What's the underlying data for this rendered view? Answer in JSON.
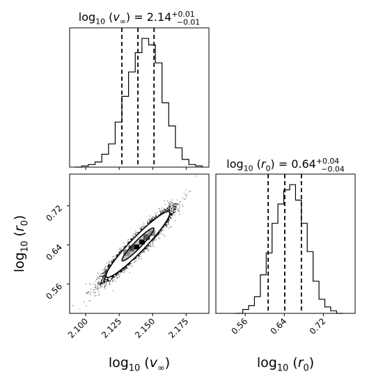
{
  "chart_data": [
    {
      "type": "histogram",
      "panel": "marginal",
      "parameter": "log10(v_inf)",
      "title_html": {
        "base": "log",
        "sub": "10",
        "arg": "(v",
        "argsub": "∞",
        "tail": ") = 2.14",
        "sup": "+0.01",
        "subv": "−0.01"
      },
      "title": "log10(v∞) = 2.14 +0.01 −0.01",
      "xlim": [
        2.088,
        2.192
      ],
      "bins": [
        2.092,
        2.097,
        2.102,
        2.107,
        2.112,
        2.117,
        2.122,
        2.127,
        2.132,
        2.137,
        2.142,
        2.147,
        2.152,
        2.157,
        2.162,
        2.167,
        2.172,
        2.177,
        2.182,
        2.187
      ],
      "values": [
        0.0,
        0.01,
        0.02,
        0.04,
        0.1,
        0.18,
        0.35,
        0.55,
        0.74,
        0.89,
        1.0,
        0.95,
        0.81,
        0.5,
        0.32,
        0.15,
        0.06,
        0.02,
        0.01
      ],
      "quantiles": [
        2.127,
        2.139,
        2.151
      ],
      "ymax": 1.05
    },
    {
      "type": "histogram",
      "panel": "marginal",
      "parameter": "log10(r0)",
      "title_html": {
        "base": "log",
        "sub": "10",
        "arg": "(r",
        "argsub": "0",
        "tail": ") = 0.64",
        "sup": "+0.04",
        "subv": "−0.04"
      },
      "title": "log10(r0) = 0.64 +0.04 −0.04",
      "xlim": [
        0.5,
        0.785
      ],
      "bins": [
        0.54,
        0.555,
        0.567,
        0.579,
        0.591,
        0.603,
        0.615,
        0.627,
        0.639,
        0.651,
        0.663,
        0.675,
        0.687,
        0.699,
        0.711,
        0.723,
        0.735,
        0.747,
        0.76
      ],
      "values": [
        0.0,
        0.03,
        0.06,
        0.13,
        0.3,
        0.47,
        0.7,
        0.85,
        0.96,
        1.0,
        0.88,
        0.7,
        0.48,
        0.25,
        0.11,
        0.05,
        0.02,
        0.0
      ],
      "quantiles": [
        0.607,
        0.641,
        0.675
      ],
      "ymax": 1.05
    },
    {
      "type": "scatter",
      "panel": "joint",
      "parameters": [
        "log10(v_inf)",
        "log10(r0)"
      ],
      "xlim": [
        2.088,
        2.192
      ],
      "ylim": [
        0.5,
        0.785
      ],
      "center": [
        2.139,
        0.641
      ],
      "std": [
        0.012,
        0.034
      ],
      "correlation": 0.95,
      "contour_levels": [
        0.39,
        0.86
      ],
      "core_cells": [
        {
          "x": 2.136,
          "y": 0.631,
          "w": 0.004,
          "h": 0.01,
          "shade": "#000000"
        },
        {
          "x": 2.14,
          "y": 0.641,
          "w": 0.004,
          "h": 0.01,
          "shade": "#000000"
        },
        {
          "x": 2.132,
          "y": 0.627,
          "w": 0.004,
          "h": 0.012,
          "shade": "#4d4d4d"
        },
        {
          "x": 2.143,
          "y": 0.65,
          "w": 0.005,
          "h": 0.012,
          "shade": "#555555"
        },
        {
          "x": 2.128,
          "y": 0.618,
          "w": 0.005,
          "h": 0.013,
          "shade": "#8a8a8a"
        },
        {
          "x": 2.147,
          "y": 0.658,
          "w": 0.005,
          "h": 0.012,
          "shade": "#8a8a8a"
        }
      ]
    }
  ],
  "axes": {
    "x_label_1": {
      "base": "log",
      "sub": "10",
      "arg": "(v",
      "argsub": "∞",
      "tail": ")"
    },
    "x_label_2": {
      "base": "log",
      "sub": "10",
      "arg": "(r",
      "argsub": "0",
      "tail": ")"
    },
    "y_label": {
      "base": "log",
      "sub": "10",
      "arg": "(r",
      "argsub": "0",
      "tail": ")"
    },
    "x_ticks_1": [
      "2.100",
      "2.125",
      "2.150",
      "2.175"
    ],
    "x_ticks_1_values": [
      2.1,
      2.125,
      2.15,
      2.175
    ],
    "x_ticks_2": [
      "0.56",
      "0.64",
      "0.72"
    ],
    "x_ticks_2_values": [
      0.56,
      0.64,
      0.72
    ],
    "y_ticks": [
      "0.56",
      "0.64",
      "0.72"
    ],
    "y_ticks_values": [
      0.56,
      0.64,
      0.72
    ]
  },
  "colors": {
    "line": "#000000",
    "axis": "#000000",
    "background": "#ffffff"
  }
}
